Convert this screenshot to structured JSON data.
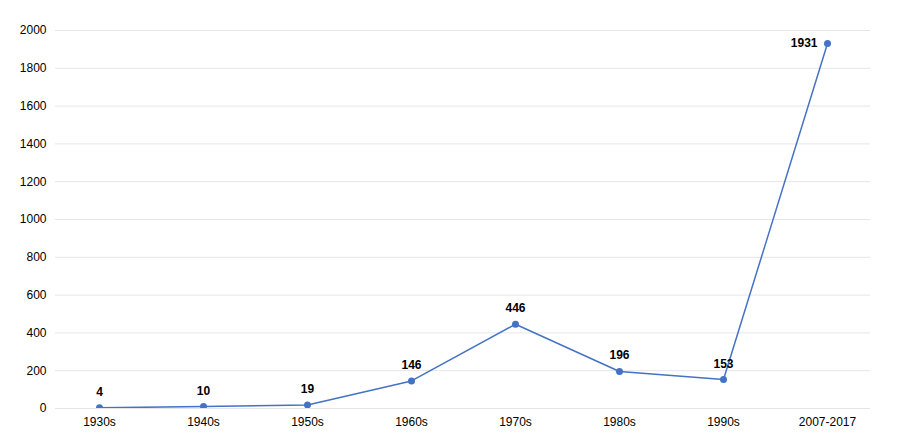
{
  "chart_data": {
    "type": "line",
    "categories": [
      "1930s",
      "1940s",
      "1950s",
      "1960s",
      "1970s",
      "1980s",
      "1990s",
      "2007-2017"
    ],
    "values": [
      4,
      10,
      19,
      146,
      446,
      196,
      153,
      1931
    ],
    "color": "#4472c4",
    "marker": "circle",
    "ylim": [
      0,
      2000
    ],
    "yticks": [
      0,
      200,
      400,
      600,
      800,
      1000,
      1200,
      1400,
      1600,
      1800,
      2000
    ],
    "grid": true,
    "data_labels": true
  }
}
